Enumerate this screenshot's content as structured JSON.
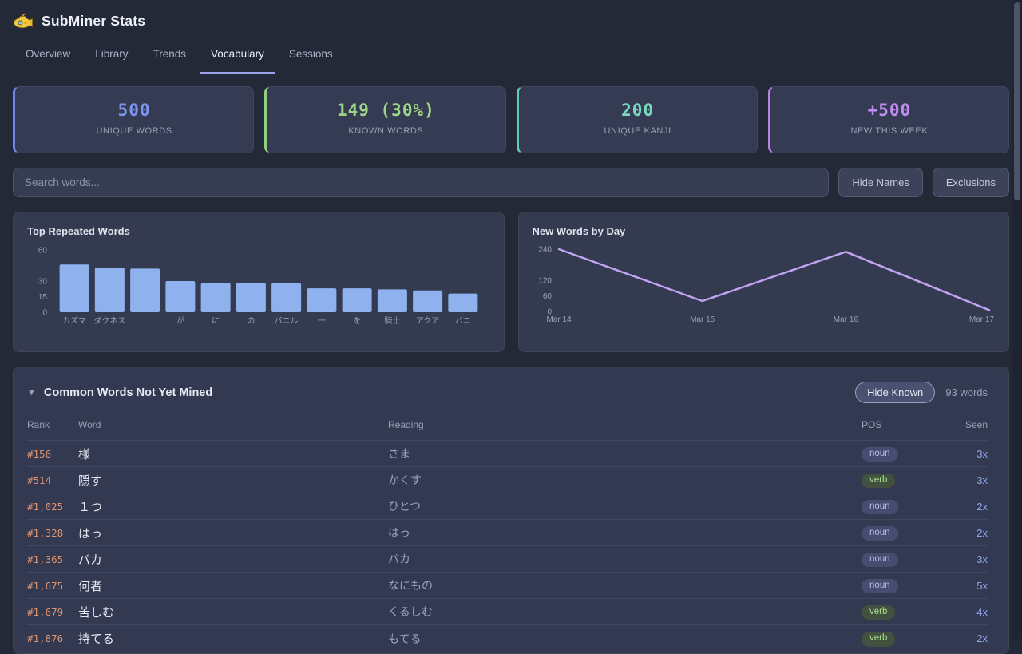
{
  "app": {
    "title": "SubMiner Stats"
  },
  "tabs": [
    {
      "label": "Overview",
      "active": false
    },
    {
      "label": "Library",
      "active": false
    },
    {
      "label": "Trends",
      "active": false
    },
    {
      "label": "Vocabulary",
      "active": true
    },
    {
      "label": "Sessions",
      "active": false
    }
  ],
  "stats": [
    {
      "value": "500",
      "label": "UNIQUE WORDS",
      "color": "#7d95ee",
      "accent": "#6f87e8"
    },
    {
      "value": "149 (30%)",
      "label": "KNOWN WORDS",
      "color": "#9ed687",
      "accent": "#8fcf7d"
    },
    {
      "value": "200",
      "label": "UNIQUE KANJI",
      "color": "#79d7bd",
      "accent": "#63cdb2"
    },
    {
      "value": "+500",
      "label": "NEW THIS WEEK",
      "color": "#c08df2",
      "accent": "#b983ea"
    }
  ],
  "search": {
    "placeholder": "Search words...",
    "hide_names_label": "Hide Names",
    "exclusions_label": "Exclusions"
  },
  "chart_data": [
    {
      "type": "bar",
      "title": "Top Repeated Words",
      "categories": [
        "カズマ",
        "ダクネス",
        "...",
        "が",
        "に",
        "の",
        "バニル",
        "一",
        "を",
        "騎士",
        "アクア",
        "バニ"
      ],
      "values": [
        46,
        43,
        42,
        30,
        28,
        28,
        28,
        23,
        23,
        22,
        21,
        18
      ],
      "yticks": [
        0,
        15,
        30,
        60
      ],
      "ylim": [
        0,
        60
      ],
      "bar_color": "#8fb2ee",
      "axis_color": "#98a0b8",
      "legend": "none",
      "grid": false
    },
    {
      "type": "line",
      "title": "New Words by Day",
      "x": [
        "Mar 14",
        "Mar 15",
        "Mar 16",
        "Mar 17"
      ],
      "values": [
        240,
        40,
        230,
        5
      ],
      "yticks": [
        0,
        60,
        120,
        240
      ],
      "ylim": [
        0,
        240
      ],
      "line_color": "#c2a3f2",
      "axis_color": "#98a0b8",
      "legend": "none",
      "grid": false
    }
  ],
  "table": {
    "collapse_icon": "▼",
    "title": "Common Words Not Yet Mined",
    "hide_known_label": "Hide Known",
    "word_count": "93 words",
    "columns": {
      "rank": "Rank",
      "word": "Word",
      "reading": "Reading",
      "pos": "POS",
      "seen": "Seen"
    },
    "pos_styles": {
      "noun": {
        "bg": "#464d70",
        "text": "#b5bdf0"
      },
      "verb": {
        "bg": "#42503f",
        "text": "#a6e092"
      }
    },
    "rows": [
      {
        "rank": "#156",
        "word": "様",
        "reading": "さま",
        "pos": "noun",
        "seen": "3x"
      },
      {
        "rank": "#514",
        "word": "隠す",
        "reading": "かくす",
        "pos": "verb",
        "seen": "3x"
      },
      {
        "rank": "#1,025",
        "word": "１つ",
        "reading": "ひとつ",
        "pos": "noun",
        "seen": "2x"
      },
      {
        "rank": "#1,328",
        "word": "はっ",
        "reading": "はっ",
        "pos": "noun",
        "seen": "2x"
      },
      {
        "rank": "#1,365",
        "word": "バカ",
        "reading": "バカ",
        "pos": "noun",
        "seen": "3x"
      },
      {
        "rank": "#1,675",
        "word": "何者",
        "reading": "なにもの",
        "pos": "noun",
        "seen": "5x"
      },
      {
        "rank": "#1,679",
        "word": "苦しむ",
        "reading": "くるしむ",
        "pos": "verb",
        "seen": "4x"
      },
      {
        "rank": "#1,876",
        "word": "持てる",
        "reading": "もてる",
        "pos": "verb",
        "seen": "2x"
      }
    ]
  }
}
